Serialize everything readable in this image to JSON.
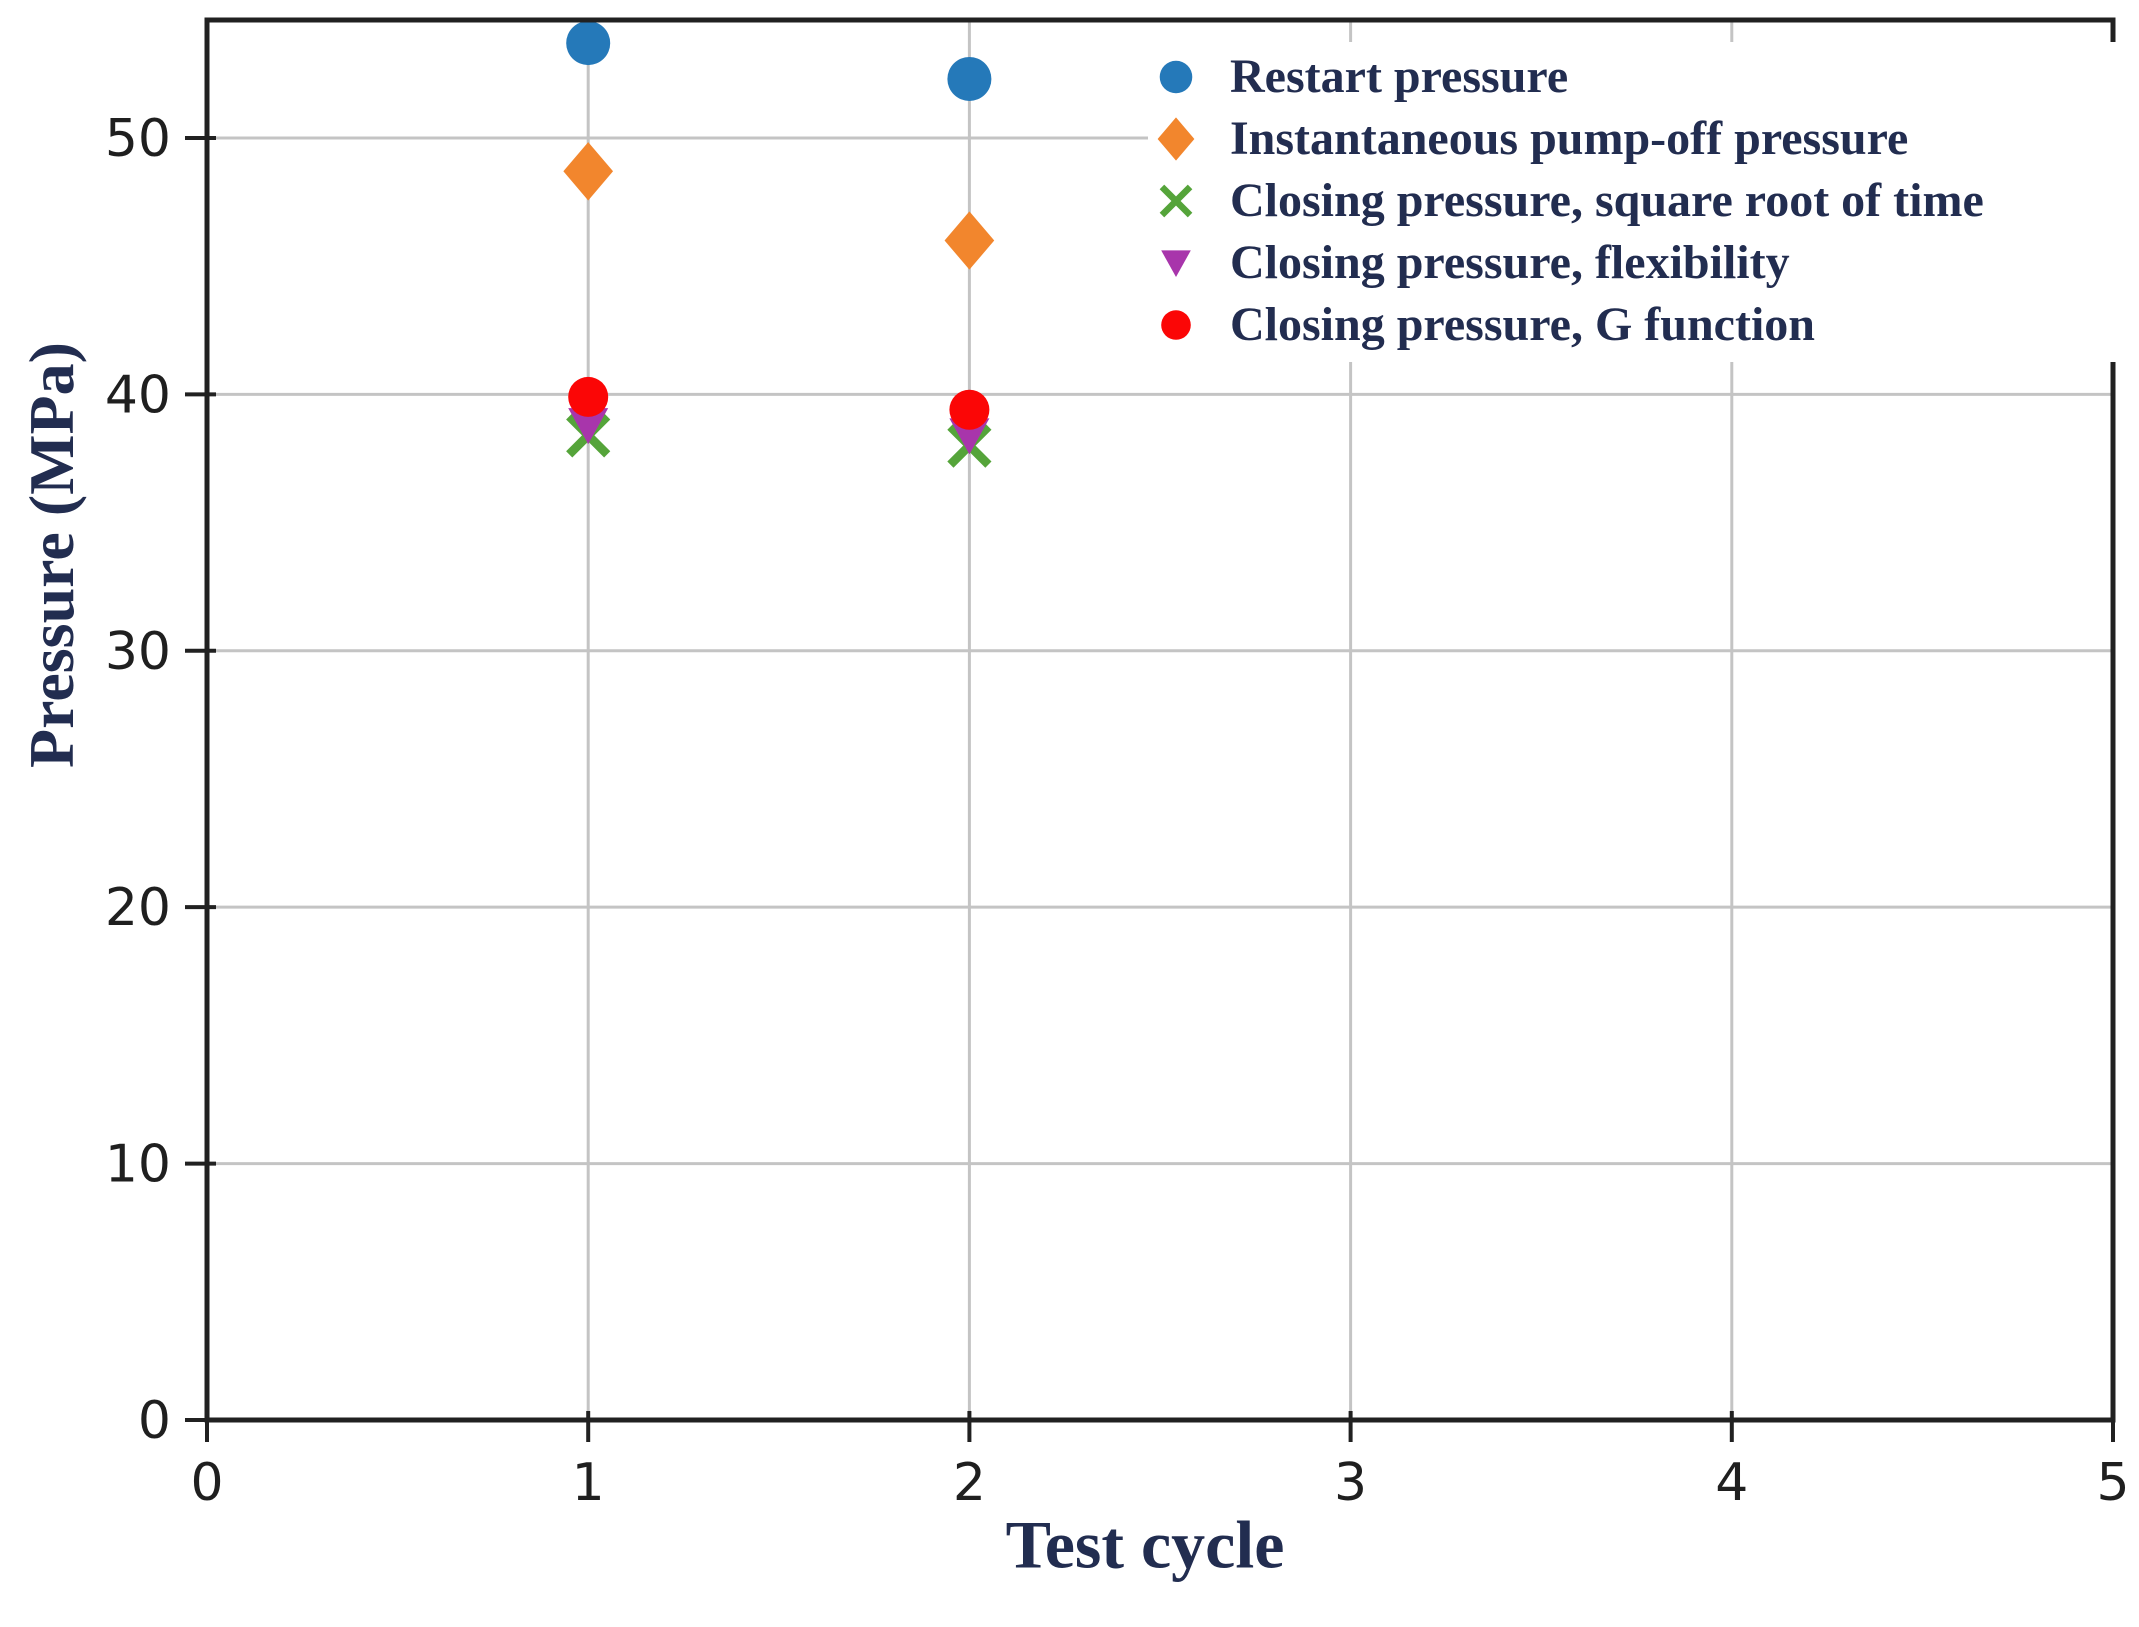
{
  "chart_data": {
    "type": "scatter",
    "title": "",
    "xlabel": "Test cycle",
    "ylabel": "Pressure (MPa)",
    "xlim": [
      0,
      5
    ],
    "ylim": [
      0,
      54.6
    ],
    "xticks": [
      0,
      1,
      2,
      3,
      4,
      5
    ],
    "yticks": [
      0,
      10,
      20,
      30,
      40,
      50
    ],
    "grid": true,
    "legend_position": "top-right-inside",
    "colors": {
      "axis_frame": "#212121",
      "gridline": "#c4c4c4",
      "tick_label": "#1f1f1f",
      "axis_label_text": "#222d50",
      "background": "#ffffff"
    },
    "series": [
      {
        "name": "Restart pressure",
        "marker": "circle",
        "color": "#2579b9",
        "size": 22,
        "x": [
          1,
          2
        ],
        "y": [
          53.7,
          52.3
        ]
      },
      {
        "name": "Instantaneous pump-off pressure",
        "marker": "diamond",
        "color": "#f2862d",
        "size": 27,
        "x": [
          1,
          2
        ],
        "y": [
          48.7,
          46.0
        ]
      },
      {
        "name": "Closing pressure, square root of time",
        "marker": "x",
        "color": "#55a43a",
        "size": 19,
        "x": [
          1,
          2
        ],
        "y": [
          38.4,
          38.0
        ]
      },
      {
        "name": "Closing pressure, flexibility",
        "marker": "triangle-down",
        "color": "#a835ab",
        "size": 20,
        "x": [
          1,
          2
        ],
        "y": [
          38.8,
          38.4
        ]
      },
      {
        "name": "Closing pressure, G function",
        "marker": "circle",
        "color": "#fb0606",
        "size": 20,
        "x": [
          1,
          2
        ],
        "y": [
          39.9,
          39.4
        ]
      }
    ]
  }
}
